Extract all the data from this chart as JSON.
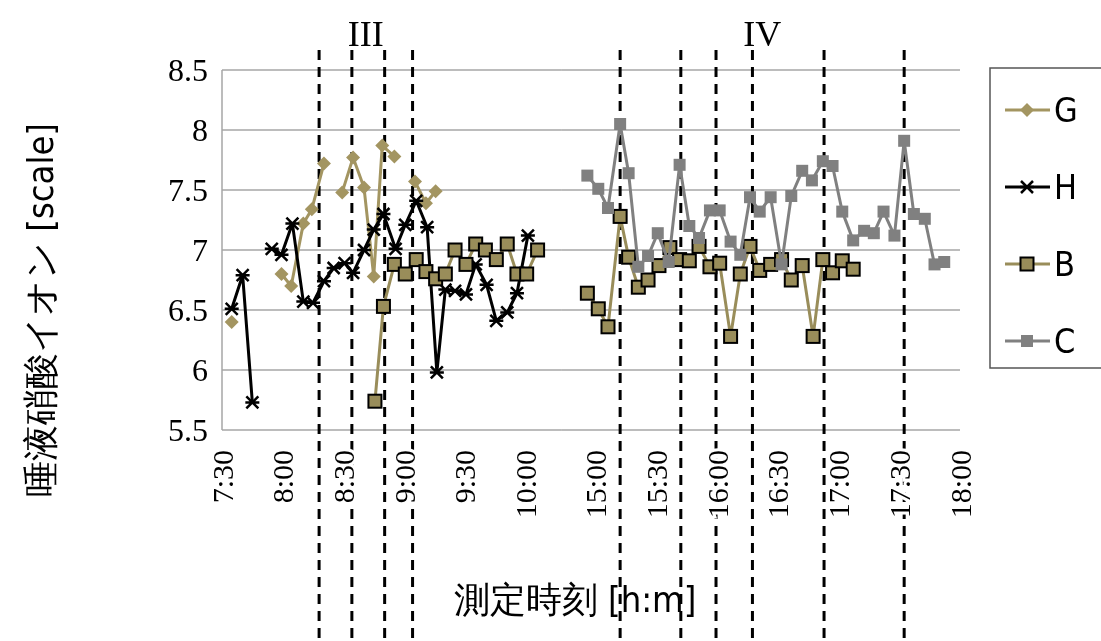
{
  "chart_data": [
    {
      "type": "line",
      "ylabel": "唾液硝酸イオン [scale]",
      "xlabel": "測定時刻 [h:m]",
      "annotations": [
        "III"
      ],
      "xlim": [
        7.5,
        10.3
      ],
      "xticks": [
        {
          "value": 7.5,
          "label": "7:30"
        },
        {
          "value": 8,
          "label": "8:00"
        },
        {
          "value": 8.5,
          "label": "8:30"
        },
        {
          "value": 9,
          "label": "9:00"
        },
        {
          "value": 9.5,
          "label": "9:30"
        },
        {
          "value": 10,
          "label": "10:00"
        }
      ],
      "ylim": [
        5.5,
        8.5
      ],
      "yticks": [
        5.5,
        6,
        6.5,
        7,
        7.5,
        8,
        8.5
      ],
      "grid": "y",
      "legend": "right",
      "ref_lines": [
        {
          "axis": "x",
          "value": 8.3,
          "line_style": "dashed",
          "color": "#000000"
        },
        {
          "axis": "x",
          "value": 8.57,
          "line_style": "dashed",
          "color": "#000000"
        },
        {
          "axis": "x",
          "value": 8.84,
          "line_style": "dashed",
          "color": "#000000"
        },
        {
          "axis": "x",
          "value": 9.07,
          "line_style": "dashed",
          "color": "#000000"
        }
      ],
      "series": [
        {
          "name": "G",
          "color": "#a39561",
          "marker": "diamond",
          "x": [
            7.58,
            7.8,
            7.99,
            8.07,
            8.17,
            8.24,
            8.34,
            8.4,
            8.49,
            8.58,
            8.67,
            8.75,
            8.82,
            8.92,
            9.0,
            9.09,
            9.18,
            9.26
          ],
          "values": [
            6.4,
            null,
            6.8,
            6.7,
            7.22,
            7.34,
            7.72,
            null,
            7.48,
            7.77,
            7.52,
            6.78,
            7.87,
            7.78,
            null,
            7.57,
            7.39,
            7.49
          ]
        },
        {
          "name": "H",
          "color": "#000000",
          "marker": "cross",
          "x": [
            7.58,
            7.67,
            7.75,
            7.85,
            7.91,
            7.99,
            8.08,
            8.17,
            8.25,
            8.34,
            8.42,
            8.51,
            8.58,
            8.67,
            8.75,
            8.83,
            8.93,
            9.01,
            9.1,
            9.19,
            9.27,
            9.34,
            9.42,
            9.51,
            9.59,
            9.68,
            9.76,
            9.85,
            9.93,
            10.02
          ],
          "values": [
            6.51,
            6.79,
            5.73,
            null,
            7.01,
            6.96,
            7.22,
            6.57,
            6.56,
            6.74,
            6.85,
            6.89,
            6.81,
            7.0,
            7.17,
            7.3,
            7.01,
            7.21,
            7.41,
            7.19,
            5.98,
            6.67,
            6.66,
            6.63,
            6.88,
            6.71,
            6.41,
            6.48,
            6.64,
            7.12
          ]
        },
        {
          "name": "B",
          "color": "#998d5a",
          "marker": "square",
          "x": [
            8.76,
            8.83,
            8.92,
            9.01,
            9.1,
            9.18,
            9.26,
            9.34,
            9.42,
            9.51,
            9.59,
            9.67,
            9.76,
            9.85,
            9.93,
            10.01,
            10.1
          ],
          "values": [
            5.74,
            6.53,
            6.88,
            6.8,
            6.92,
            6.82,
            6.76,
            6.8,
            7.0,
            6.88,
            7.05,
            7.0,
            6.92,
            7.05,
            6.8,
            6.8,
            7.0
          ]
        }
      ]
    },
    {
      "type": "line",
      "annotations": [
        "IV"
      ],
      "xlim": [
        14.72,
        18.0
      ],
      "xticks": [
        {
          "value": 15,
          "label": "15:00"
        },
        {
          "value": 15.5,
          "label": "15:30"
        },
        {
          "value": 16,
          "label": "16:00"
        },
        {
          "value": 16.5,
          "label": "16:30"
        },
        {
          "value": 17,
          "label": "17:00"
        },
        {
          "value": 17.5,
          "label": "17:30"
        },
        {
          "value": 18,
          "label": "18:00"
        }
      ],
      "ylim": [
        5.5,
        8.5
      ],
      "yticks": [
        5.5,
        6,
        6.5,
        7,
        7.5,
        8,
        8.5
      ],
      "tick_labels": "x",
      "grid": "y",
      "legend": "right",
      "ref_lines": [
        {
          "axis": "x",
          "value": 15.2,
          "line_style": "dashed",
          "color": "#000000"
        },
        {
          "axis": "x",
          "value": 15.7,
          "line_style": "dashed",
          "color": "#000000"
        },
        {
          "axis": "x",
          "value": 15.99,
          "line_style": "dashed",
          "color": "#000000"
        },
        {
          "axis": "x",
          "value": 16.29,
          "line_style": "dashed",
          "color": "#000000"
        },
        {
          "axis": "x",
          "value": 16.88,
          "line_style": "dashed",
          "color": "#000000"
        },
        {
          "axis": "x",
          "value": 17.54,
          "line_style": "dashed",
          "color": "#000000"
        }
      ],
      "series": [
        {
          "color": "#998d5a",
          "marker": "square",
          "x": [
            14.93,
            15.02,
            15.1,
            15.2,
            15.27,
            15.35,
            15.43,
            15.52,
            15.61,
            15.69,
            15.77,
            15.85,
            15.94,
            16.02,
            16.11,
            16.19,
            16.27,
            16.35,
            16.44,
            16.53,
            16.61,
            16.7,
            16.79,
            16.87,
            16.95,
            17.03,
            17.12
          ],
          "values": [
            6.64,
            6.51,
            6.36,
            7.28,
            6.94,
            6.69,
            6.75,
            6.87,
            7.02,
            6.92,
            6.91,
            7.03,
            6.86,
            6.89,
            6.28,
            6.8,
            7.03,
            6.83,
            6.88,
            6.92,
            6.75,
            6.87,
            6.28,
            6.92,
            6.81,
            6.91,
            6.84
          ]
        },
        {
          "name": "C",
          "color": "#808080",
          "marker": "square",
          "x": [
            14.93,
            15.02,
            15.1,
            15.2,
            15.27,
            15.35,
            15.43,
            15.51,
            15.6,
            15.69,
            15.77,
            15.85,
            15.94,
            16.02,
            16.11,
            16.19,
            16.27,
            16.35,
            16.44,
            16.53,
            16.61,
            16.7,
            16.78,
            16.87,
            16.95,
            17.03,
            17.12,
            17.21,
            17.29,
            17.37,
            17.46,
            17.54,
            17.62,
            17.71,
            17.79,
            17.87
          ],
          "values": [
            7.62,
            7.51,
            7.35,
            8.05,
            7.64,
            6.86,
            6.95,
            7.14,
            6.9,
            7.71,
            7.2,
            7.1,
            7.33,
            7.33,
            7.07,
            6.96,
            7.44,
            7.32,
            7.44,
            6.88,
            7.45,
            7.66,
            7.58,
            7.74,
            7.7,
            7.32,
            7.08,
            7.16,
            7.14,
            7.32,
            7.12,
            7.91,
            7.3,
            7.26,
            6.88,
            6.9
          ]
        }
      ]
    }
  ]
}
